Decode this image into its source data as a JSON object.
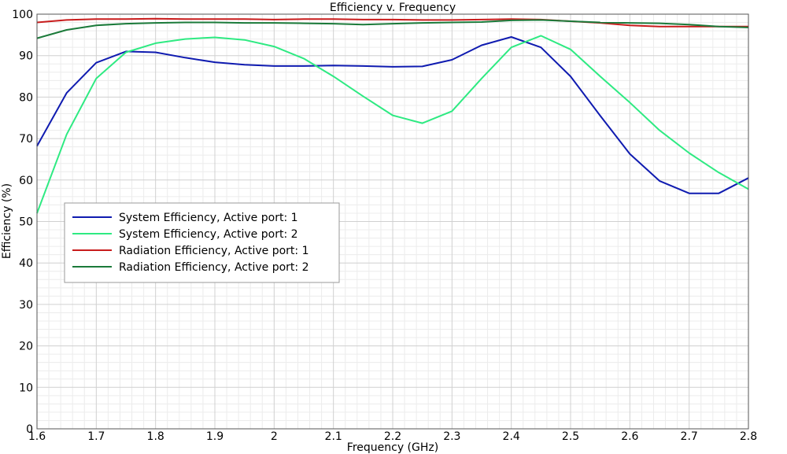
{
  "chart_data": {
    "type": "line",
    "title": "Efficiency v. Frequency",
    "xlabel": "Frequency (GHz)",
    "ylabel": "Efficiency (%)",
    "xlim": [
      1.6,
      2.8
    ],
    "ylim": [
      0,
      100
    ],
    "x_ticks": [
      "1.6",
      "1.7",
      "1.8",
      "1.9",
      "2",
      "2.1",
      "2.2",
      "2.3",
      "2.4",
      "2.5",
      "2.6",
      "2.7",
      "2.8"
    ],
    "y_ticks": [
      "0",
      "10",
      "20",
      "30",
      "40",
      "50",
      "60",
      "70",
      "80",
      "90",
      "100"
    ],
    "grid": true,
    "legend_position": "middle-left",
    "x": [
      1.6,
      1.65,
      1.7,
      1.75,
      1.8,
      1.85,
      1.9,
      1.95,
      2.0,
      2.05,
      2.1,
      2.15,
      2.2,
      2.25,
      2.3,
      2.35,
      2.4,
      2.45,
      2.5,
      2.55,
      2.6,
      2.65,
      2.7,
      2.75,
      2.8
    ],
    "series": [
      {
        "name": "System Efficiency, Active port: 1",
        "color": "#0f1bb0",
        "values": [
          68.2,
          81.0,
          88.3,
          91.0,
          90.8,
          89.5,
          88.4,
          87.8,
          87.5,
          87.5,
          87.6,
          87.5,
          87.3,
          87.4,
          89.0,
          92.5,
          94.5,
          92.0,
          85.0,
          75.5,
          66.3,
          59.8,
          56.8,
          56.8,
          60.5
        ]
      },
      {
        "name": "System Efficiency, Active port: 2",
        "color": "#2eea82",
        "values": [
          52.0,
          71.0,
          84.5,
          90.8,
          93.0,
          94.0,
          94.4,
          93.8,
          92.2,
          89.3,
          85.0,
          80.2,
          75.6,
          73.7,
          76.6,
          84.5,
          92.0,
          94.8,
          91.5,
          85.0,
          78.7,
          72.0,
          66.5,
          61.8,
          57.8
        ]
      },
      {
        "name": "Radiation Efficiency, Active port: 1",
        "color": "#c81c1c",
        "values": [
          98.0,
          98.6,
          98.8,
          98.8,
          98.9,
          98.8,
          98.8,
          98.8,
          98.7,
          98.8,
          98.8,
          98.7,
          98.7,
          98.6,
          98.6,
          98.7,
          98.8,
          98.7,
          98.3,
          97.9,
          97.3,
          97.0,
          97.0,
          97.0,
          97.0
        ]
      },
      {
        "name": "Radiation Efficiency, Active port: 2",
        "color": "#1b7a3a",
        "values": [
          94.2,
          96.2,
          97.3,
          97.7,
          97.9,
          98.0,
          98.0,
          97.9,
          97.9,
          97.8,
          97.7,
          97.5,
          97.7,
          97.9,
          98.0,
          98.1,
          98.5,
          98.6,
          98.3,
          98.0,
          97.9,
          97.8,
          97.5,
          97.0,
          96.8
        ]
      }
    ]
  }
}
